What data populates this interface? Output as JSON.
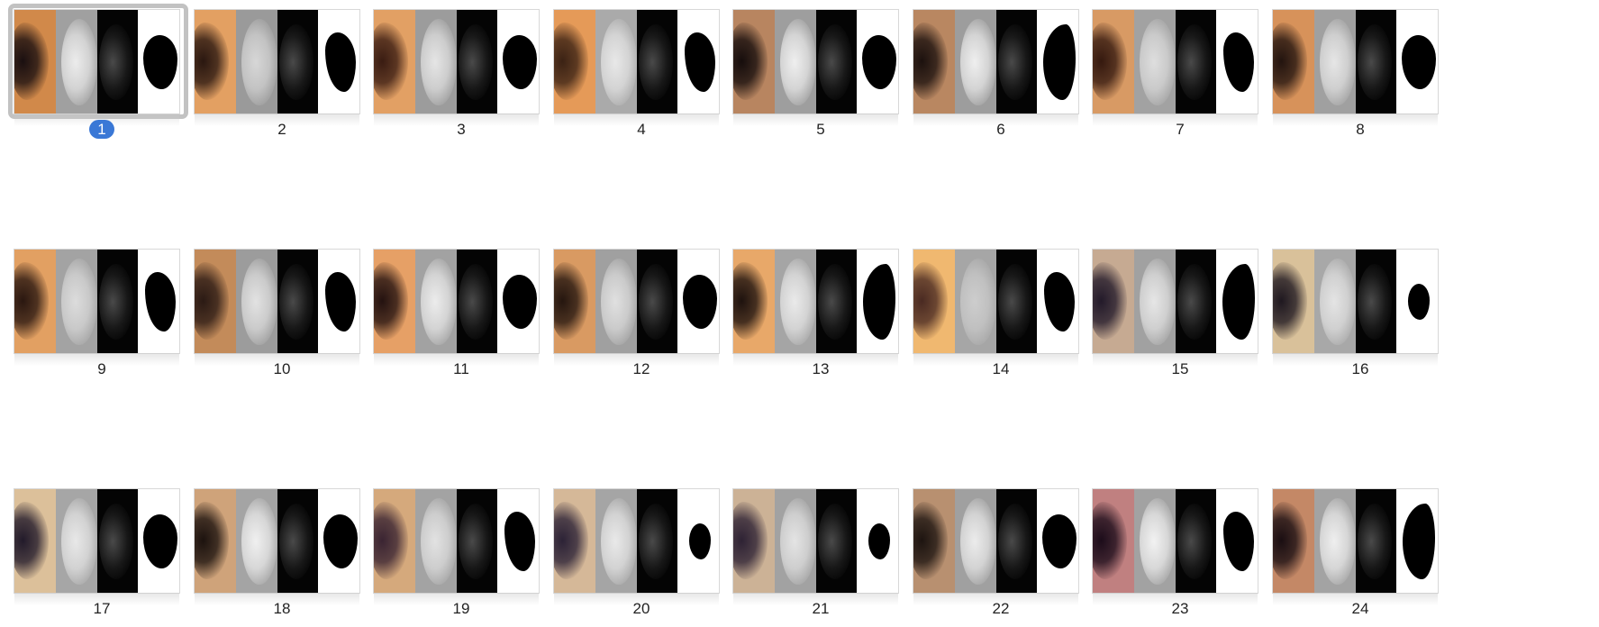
{
  "colors": {
    "selection_badge": "#3a78d6",
    "selection_frame": "#c2c2c2",
    "background": "#ffffff"
  },
  "grid": {
    "selected_index": 0,
    "thumbnails": [
      {
        "label": "1",
        "photo": "#d1894a",
        "tint": "#1a0f10",
        "gray": "#a0a0a0",
        "glow": "#ececec",
        "mask_shape": "round"
      },
      {
        "label": "2",
        "photo": "#e3a062",
        "tint": "#2a1710",
        "gray": "#9a9a9a",
        "glow": "#d7d7d7",
        "mask_shape": "rough"
      },
      {
        "label": "3",
        "photo": "#e2a064",
        "tint": "#3a1c12",
        "gray": "#9c9c9c",
        "glow": "#e5e5e5",
        "mask_shape": "round"
      },
      {
        "label": "4",
        "photo": "#e59a58",
        "tint": "#3b2214",
        "gray": "#aaaaaa",
        "glow": "#e8e8e8",
        "mask_shape": "rough"
      },
      {
        "label": "5",
        "photo": "#b88560",
        "tint": "#160d0c",
        "gray": "#9e9e9e",
        "glow": "#efefef",
        "mask_shape": "round"
      },
      {
        "label": "6",
        "photo": "#b98761",
        "tint": "#1c110e",
        "gray": "#9d9d9d",
        "glow": "#efefef",
        "mask_shape": "crescent"
      },
      {
        "label": "7",
        "photo": "#d89a64",
        "tint": "#35190f",
        "gray": "#a2a2a2",
        "glow": "#dedede",
        "mask_shape": "rough"
      },
      {
        "label": "8",
        "photo": "#d7925a",
        "tint": "#23140f",
        "gray": "#a0a0a0",
        "glow": "#e6e6e6",
        "mask_shape": "round"
      },
      {
        "label": "9",
        "photo": "#e2a062",
        "tint": "#2a1710",
        "gray": "#a3a3a3",
        "glow": "#dcdcdc",
        "mask_shape": "rough"
      },
      {
        "label": "10",
        "photo": "#c38b5a",
        "tint": "#2b1a14",
        "gray": "#9c9c9c",
        "glow": "#e2e2e2",
        "mask_shape": "rough"
      },
      {
        "label": "11",
        "photo": "#e6a066",
        "tint": "#241210",
        "gray": "#a2a2a2",
        "glow": "#ececec",
        "mask_shape": "round"
      },
      {
        "label": "12",
        "photo": "#d99a62",
        "tint": "#25160f",
        "gray": "#a0a0a0",
        "glow": "#e0e0e0",
        "mask_shape": "round"
      },
      {
        "label": "13",
        "photo": "#e8a869",
        "tint": "#1e120e",
        "gray": "#a5a5a5",
        "glow": "#eaeaea",
        "mask_shape": "crescent"
      },
      {
        "label": "14",
        "photo": "#f0b870",
        "tint": "#4a2a22",
        "gray": "#a6a6a6",
        "glow": "#cdcdcd",
        "mask_shape": "rough"
      },
      {
        "label": "15",
        "photo": "#c6aa92",
        "tint": "#231a2a",
        "gray": "#a1a1a1",
        "glow": "#e6e6e6",
        "mask_shape": "crescent"
      },
      {
        "label": "16",
        "photo": "#d9c19a",
        "tint": "#1f1820",
        "gray": "#a8a8a8",
        "glow": "#e4e4e4",
        "mask_shape": "small"
      },
      {
        "label": "17",
        "photo": "#dcc09a",
        "tint": "#221a2a",
        "gray": "#a6a6a6",
        "glow": "#e8e8e8",
        "mask_shape": "round"
      },
      {
        "label": "18",
        "photo": "#cfa37a",
        "tint": "#1c120e",
        "gray": "#a4a4a4",
        "glow": "#f0f0f0",
        "mask_shape": "round"
      },
      {
        "label": "19",
        "photo": "#d5a97c",
        "tint": "#3a2432",
        "gray": "#a3a3a3",
        "glow": "#e2e2e2",
        "mask_shape": "rough"
      },
      {
        "label": "20",
        "photo": "#d5b898",
        "tint": "#2c2236",
        "gray": "#a5a5a5",
        "glow": "#e9e9e9",
        "mask_shape": "small"
      },
      {
        "label": "21",
        "photo": "#ccb296",
        "tint": "#2e2234",
        "gray": "#a2a2a2",
        "glow": "#e4e4e4",
        "mask_shape": "small"
      },
      {
        "label": "22",
        "photo": "#b89070",
        "tint": "#1d1410",
        "gray": "#a0a0a0",
        "glow": "#ececec",
        "mask_shape": "round"
      },
      {
        "label": "23",
        "photo": "#c08080",
        "tint": "#1c0c1a",
        "gray": "#a2a2a2",
        "glow": "#f2f2f2",
        "mask_shape": "rough"
      },
      {
        "label": "24",
        "photo": "#c48866",
        "tint": "#1a0e12",
        "gray": "#a3a3a3",
        "glow": "#efefef",
        "mask_shape": "crescent"
      }
    ]
  }
}
